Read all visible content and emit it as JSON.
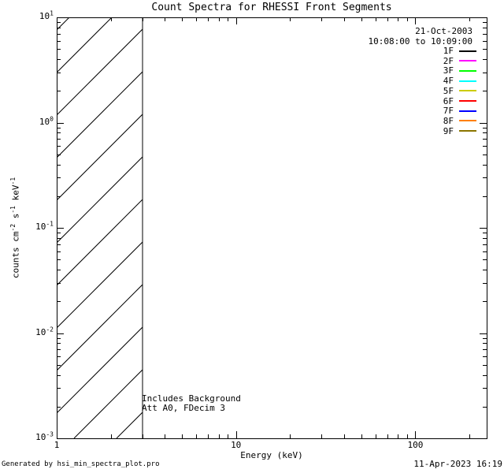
{
  "chart_data": {
    "type": "line",
    "title": "Count Spectra for RHESSI Front Segments",
    "xlabel": "Energy (keV)",
    "ylabel_parts": [
      {
        "text": "counts cm"
      },
      {
        "text": "-2",
        "sup": true
      },
      {
        "text": " s"
      },
      {
        "text": "-1",
        "sup": true
      },
      {
        "text": " keV"
      },
      {
        "text": "-1",
        "sup": true
      }
    ],
    "x_scale": "log",
    "y_scale": "log",
    "xlim": [
      1,
      250
    ],
    "ylim": [
      0.001,
      10
    ],
    "grid": false,
    "x_ticks": {
      "major": [
        {
          "value": 1,
          "label": "1"
        },
        {
          "value": 10,
          "label": "10"
        },
        {
          "value": 100,
          "label": "100"
        }
      ],
      "minor": [
        2,
        3,
        4,
        5,
        6,
        7,
        8,
        9,
        20,
        30,
        40,
        50,
        60,
        70,
        80,
        90,
        200
      ]
    },
    "y_ticks": {
      "major": [
        {
          "value": 10,
          "base": "10",
          "exp": "1"
        },
        {
          "value": 1,
          "base": "10",
          "exp": "0"
        },
        {
          "value": 0.1,
          "base": "10",
          "exp": "-1"
        },
        {
          "value": 0.01,
          "base": "10",
          "exp": "-2"
        },
        {
          "value": 0.001,
          "base": "10",
          "exp": "-3"
        }
      ],
      "minor": [
        0.002,
        0.003,
        0.004,
        0.005,
        0.006,
        0.007,
        0.008,
        0.009,
        0.02,
        0.03,
        0.04,
        0.05,
        0.06,
        0.07,
        0.08,
        0.09,
        0.2,
        0.3,
        0.4,
        0.5,
        0.6,
        0.7,
        0.8,
        0.9,
        2,
        3,
        4,
        5,
        6,
        7,
        8,
        9
      ]
    },
    "legend": {
      "position": "top-right",
      "date": "21-Oct-2003",
      "time_range": "10:08:00 to 10:09:00",
      "entries": [
        {
          "label": "1F",
          "color": "#000000"
        },
        {
          "label": "2F",
          "color": "#ff00ff"
        },
        {
          "label": "3F",
          "color": "#00ff00"
        },
        {
          "label": "4F",
          "color": "#00ffff"
        },
        {
          "label": "5F",
          "color": "#cccc00"
        },
        {
          "label": "6F",
          "color": "#ff0000"
        },
        {
          "label": "7F",
          "color": "#0000ff"
        },
        {
          "label": "8F",
          "color": "#ff8000"
        },
        {
          "label": "9F",
          "color": "#8b7500"
        }
      ]
    },
    "annotations": {
      "line1": "Includes Background",
      "line2": "Att A0, FDecim 3"
    },
    "hatched_region": {
      "x_start": 1,
      "x_end": 3,
      "pattern": "diagonal-lines"
    },
    "series": []
  },
  "footer": {
    "left": "Generated by hsi_min_spectra_plot.pro",
    "right": "11-Apr-2023 16:19"
  }
}
